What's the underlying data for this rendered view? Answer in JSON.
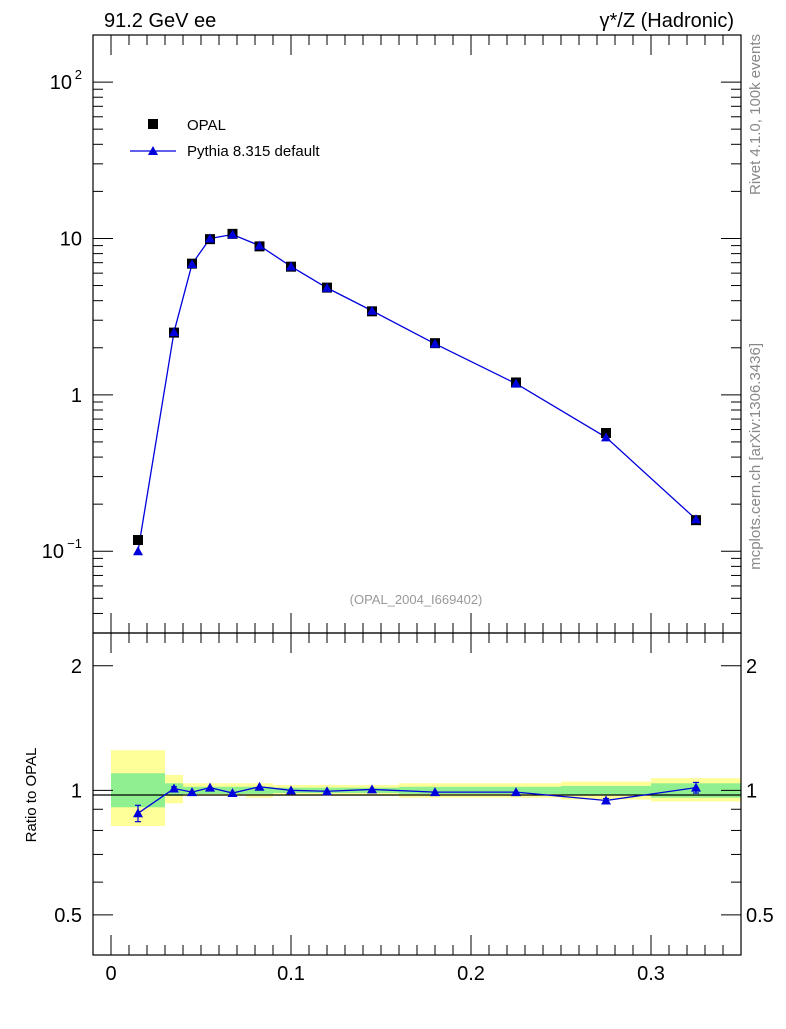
{
  "header": {
    "left_title": "91.2 GeV ee",
    "right_title": "γ*/Z (Hadronic)"
  },
  "side_labels": {
    "rivet": "Rivet 4.1.0,  100k events",
    "mcplots": "mcplots.cern.ch [arXiv:1306.3436]"
  },
  "analysis_ref": "(OPAL_2004_I669402)",
  "colors": {
    "data": "#000000",
    "mc": "#0000dd",
    "band_stat": "#90f090",
    "band_total": "#ffff99"
  },
  "chart_data": [
    {
      "type": "scatter",
      "panel": "main",
      "y_scale": "log",
      "xlim": [
        -0.01,
        0.35
      ],
      "ylim": [
        0.03,
        200
      ],
      "y_ticks": [
        {
          "value": 0.1,
          "label": "10",
          "exp": "−1"
        },
        {
          "value": 1,
          "label": "1",
          "exp": ""
        },
        {
          "value": 10,
          "label": "10",
          "exp": ""
        },
        {
          "value": 100,
          "label": "10",
          "exp": "2"
        }
      ],
      "legend_position": "top-left",
      "series": [
        {
          "name": "OPAL",
          "marker": "square",
          "x": [
            0.015,
            0.035,
            0.045,
            0.055,
            0.0675,
            0.0825,
            0.1,
            0.12,
            0.145,
            0.18,
            0.225,
            0.275,
            0.325
          ],
          "y": [
            0.118,
            2.5,
            6.9,
            9.9,
            10.7,
            8.9,
            6.6,
            4.85,
            3.42,
            2.14,
            1.2,
            0.57,
            0.158
          ]
        },
        {
          "name": "Pythia 8.315 default",
          "marker": "triangle",
          "x": [
            0.015,
            0.035,
            0.045,
            0.055,
            0.0675,
            0.0825,
            0.1,
            0.12,
            0.145,
            0.18,
            0.225,
            0.275,
            0.325
          ],
          "y": [
            0.1,
            2.52,
            6.85,
            10.0,
            10.6,
            9.0,
            6.62,
            4.83,
            3.45,
            2.12,
            1.18,
            0.535,
            0.16
          ]
        }
      ]
    },
    {
      "type": "line",
      "panel": "ratio",
      "ylabel": "Ratio to OPAL",
      "y_scale": "log",
      "xlim": [
        -0.01,
        0.35
      ],
      "ylim": [
        0.4,
        2.4
      ],
      "x_ticks": [
        0,
        0.1,
        0.2,
        0.3
      ],
      "x_tick_labels": [
        "0",
        "0.1",
        "0.2",
        "0.3"
      ],
      "y_ticks": [
        0.5,
        1,
        2
      ],
      "y_tick_labels": [
        "0.5",
        "1",
        "2"
      ],
      "bands": [
        {
          "x_lo": 0.0,
          "x_hi": 0.03,
          "stat": [
            0.91,
            1.1
          ],
          "total": [
            0.82,
            1.25
          ]
        },
        {
          "x_lo": 0.03,
          "x_hi": 0.04,
          "stat": [
            0.97,
            1.04
          ],
          "total": [
            0.93,
            1.09
          ]
        },
        {
          "x_lo": 0.04,
          "x_hi": 0.05,
          "stat": [
            0.98,
            1.02
          ],
          "total": [
            0.97,
            1.04
          ]
        },
        {
          "x_lo": 0.05,
          "x_hi": 0.06,
          "stat": [
            0.98,
            1.02
          ],
          "total": [
            0.97,
            1.04
          ]
        },
        {
          "x_lo": 0.06,
          "x_hi": 0.075,
          "stat": [
            0.98,
            1.02
          ],
          "total": [
            0.97,
            1.04
          ]
        },
        {
          "x_lo": 0.075,
          "x_hi": 0.09,
          "stat": [
            0.98,
            1.02
          ],
          "total": [
            0.96,
            1.04
          ]
        },
        {
          "x_lo": 0.09,
          "x_hi": 0.11,
          "stat": [
            0.985,
            1.015
          ],
          "total": [
            0.97,
            1.03
          ]
        },
        {
          "x_lo": 0.11,
          "x_hi": 0.13,
          "stat": [
            0.985,
            1.015
          ],
          "total": [
            0.97,
            1.03
          ]
        },
        {
          "x_lo": 0.13,
          "x_hi": 0.16,
          "stat": [
            0.985,
            1.015
          ],
          "total": [
            0.97,
            1.03
          ]
        },
        {
          "x_lo": 0.16,
          "x_hi": 0.2,
          "stat": [
            0.98,
            1.02
          ],
          "total": [
            0.96,
            1.04
          ]
        },
        {
          "x_lo": 0.2,
          "x_hi": 0.25,
          "stat": [
            0.98,
            1.02
          ],
          "total": [
            0.96,
            1.04
          ]
        },
        {
          "x_lo": 0.25,
          "x_hi": 0.3,
          "stat": [
            0.975,
            1.025
          ],
          "total": [
            0.95,
            1.05
          ]
        },
        {
          "x_lo": 0.3,
          "x_hi": 0.35,
          "stat": [
            0.96,
            1.04
          ],
          "total": [
            0.94,
            1.07
          ]
        }
      ],
      "series": [
        {
          "name": "Pythia 8.315 default",
          "x": [
            0.015,
            0.035,
            0.045,
            0.055,
            0.0675,
            0.0825,
            0.1,
            0.12,
            0.145,
            0.18,
            0.225,
            0.275,
            0.325
          ],
          "y": [
            0.88,
            1.01,
            0.99,
            1.015,
            0.985,
            1.02,
            1.0,
            0.995,
            1.005,
            0.99,
            0.99,
            0.945,
            1.015
          ],
          "err": [
            0.04,
            0.01,
            0.005,
            0.005,
            0.005,
            0.008,
            0.006,
            0.006,
            0.006,
            0.006,
            0.008,
            0.01,
            0.03
          ]
        }
      ]
    }
  ]
}
